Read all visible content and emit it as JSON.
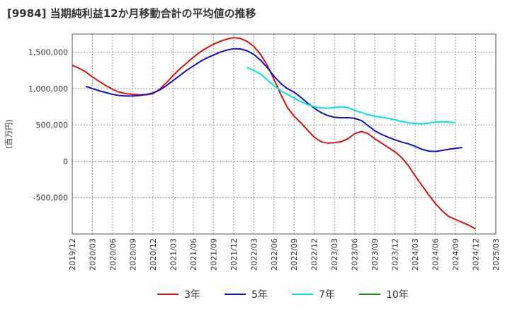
{
  "chart_data": {
    "type": "line",
    "title": "[9984]  当期純利益12か月移動合計の平均値の推移",
    "ylabel": "(百万円)",
    "ylim": [
      -1000000,
      1750000
    ],
    "yticks": [
      -500000,
      0,
      500000,
      1000000,
      1500000
    ],
    "ytick_labels": [
      "-500,000",
      "0",
      "500,000",
      "1,000,000",
      "1,500,000"
    ],
    "x_start": "2019-12",
    "x_end": "2025-03",
    "x_tick_labels": [
      "2019/12",
      "2020/03",
      "2020/06",
      "2020/09",
      "2020/12",
      "2021/03",
      "2021/06",
      "2021/09",
      "2021/12",
      "2022/03",
      "2022/06",
      "2022/09",
      "2022/12",
      "2023/03",
      "2023/06",
      "2023/09",
      "2023/12",
      "2024/03",
      "2024/06",
      "2024/09",
      "2024/12",
      "2025/03"
    ],
    "grid": true,
    "legend_position": "bottom",
    "series": [
      {
        "name": "3年",
        "color": "#dd1111",
        "start": "2019-12",
        "values": [
          1320000,
          1280000,
          1230000,
          1160000,
          1100000,
          1040000,
          990000,
          950000,
          930000,
          920000,
          915000,
          915000,
          930000,
          990000,
          1080000,
          1180000,
          1270000,
          1350000,
          1430000,
          1500000,
          1560000,
          1610000,
          1650000,
          1680000,
          1700000,
          1690000,
          1650000,
          1580000,
          1470000,
          1320000,
          1130000,
          920000,
          740000,
          620000,
          530000,
          430000,
          330000,
          270000,
          250000,
          255000,
          270000,
          310000,
          380000,
          410000,
          380000,
          310000,
          250000,
          190000,
          130000,
          50000,
          -60000,
          -200000,
          -330000,
          -460000,
          -580000,
          -680000,
          -760000,
          -800000,
          -840000,
          -880000,
          -930000
        ]
      },
      {
        "name": "5年",
        "color": "#1111cc",
        "start": "2020-02",
        "values": [
          1030000,
          1000000,
          970000,
          945000,
          920000,
          905000,
          898000,
          898000,
          905000,
          918000,
          940000,
          980000,
          1040000,
          1110000,
          1180000,
          1250000,
          1310000,
          1370000,
          1420000,
          1460000,
          1500000,
          1530000,
          1548000,
          1545000,
          1520000,
          1470000,
          1390000,
          1290000,
          1170000,
          1070000,
          1000000,
          950000,
          880000,
          800000,
          730000,
          670000,
          630000,
          605000,
          598000,
          600000,
          590000,
          560000,
          490000,
          420000,
          370000,
          330000,
          295000,
          265000,
          240000,
          205000,
          165000,
          140000,
          135000,
          150000,
          165000,
          178000,
          190000
        ]
      },
      {
        "name": "7年",
        "color": "#00e5e5",
        "start": "2022-02",
        "values": [
          1290000,
          1250000,
          1200000,
          1120000,
          1040000,
          970000,
          920000,
          870000,
          820000,
          780000,
          750000,
          735000,
          730000,
          740000,
          750000,
          740000,
          700000,
          670000,
          640000,
          620000,
          605000,
          590000,
          570000,
          550000,
          530000,
          520000,
          515000,
          525000,
          540000,
          545000,
          540000,
          530000
        ]
      },
      {
        "name": "10年",
        "color": "#228822",
        "start": "2019-12",
        "values": []
      }
    ]
  }
}
